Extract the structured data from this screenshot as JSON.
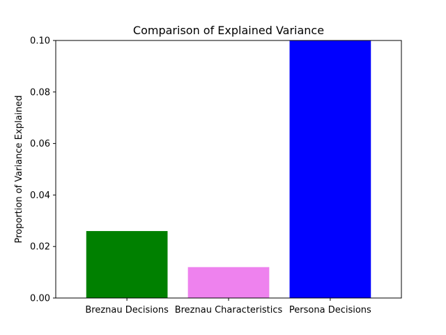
{
  "chart_data": {
    "type": "bar",
    "title": "Comparison of Explained Variance",
    "xlabel": "",
    "ylabel": "Proportion of Variance Explained",
    "categories": [
      "Breznau Decisions",
      "Breznau Characteristics",
      "Persona Decisions"
    ],
    "values": [
      0.026,
      0.012,
      0.1
    ],
    "colors": [
      "#008000",
      "#ee82ee",
      "#0000ff"
    ],
    "ylim": [
      0,
      0.1
    ],
    "yticks": [
      "0.00",
      "0.02",
      "0.04",
      "0.06",
      "0.08",
      "0.10"
    ],
    "grid": false,
    "legend": "none"
  }
}
